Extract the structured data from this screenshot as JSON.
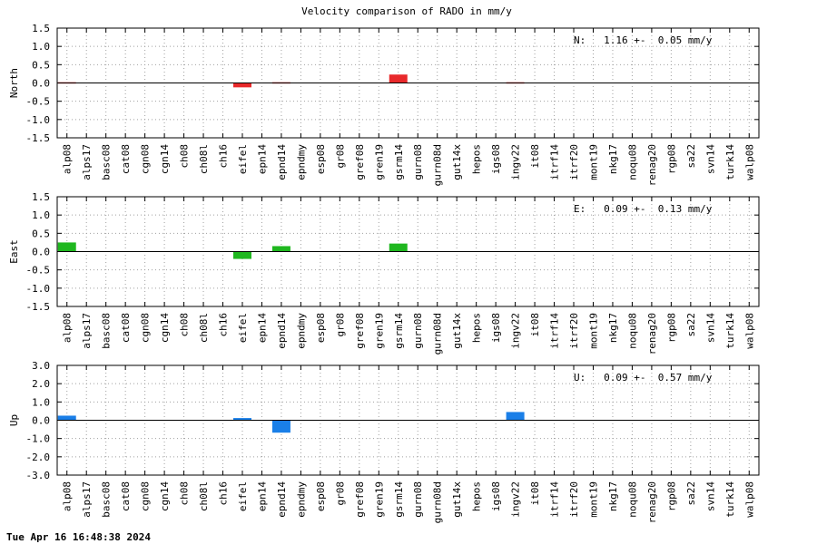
{
  "title": "Velocity comparison of RADO in mm/y",
  "timestamp": "Tue Apr 16 16:48:38 2024",
  "chart_data": {
    "type": "bar",
    "title": "Velocity comparison of RADO in mm/y",
    "categories": [
      "alp08",
      "alps17",
      "basc08",
      "cat08",
      "cgn08",
      "cgn14",
      "ch08",
      "ch08l",
      "ch16",
      "eifel",
      "epn14",
      "epnd14",
      "epndmy",
      "esp08",
      "gr08",
      "gref08",
      "gren19",
      "gsrm14",
      "gurn08",
      "gurn08d",
      "gut14x",
      "hepos",
      "igs08",
      "ingv22",
      "it08",
      "itrf14",
      "itrf20",
      "mont19",
      "nkg17",
      "noqu08",
      "renag20",
      "rgp08",
      "sa22",
      "svn14",
      "turk14",
      "walp08"
    ],
    "panels": [
      {
        "ylabel": "North",
        "color": "#e8292b",
        "ylim": [
          -1.5,
          1.5
        ],
        "yticks": [
          "1.5",
          "1.0",
          "0.5",
          "0.0",
          "-0.5",
          "-1.0",
          "-1.5"
        ],
        "stat": "N:   1.16 +-  0.05 mm/y",
        "values": [
          0.02,
          0,
          0,
          0,
          0,
          0,
          0,
          0,
          0,
          -0.12,
          0,
          0.02,
          0,
          0,
          0,
          0,
          0,
          0.23,
          0,
          0,
          0,
          0,
          0,
          0.02,
          0,
          0,
          0,
          0,
          0,
          0,
          0,
          0,
          0,
          0,
          0,
          0
        ]
      },
      {
        "ylabel": "East",
        "color": "#1fb71f",
        "ylim": [
          -1.5,
          1.5
        ],
        "yticks": [
          "1.5",
          "1.0",
          "0.5",
          "0.0",
          "-0.5",
          "-1.0",
          "-1.5"
        ],
        "stat": "E:   0.09 +-  0.13 mm/y",
        "values": [
          0.25,
          0,
          0,
          0,
          0,
          0,
          0,
          0,
          0,
          -0.2,
          0,
          0.15,
          0,
          0,
          0,
          0,
          0,
          0.22,
          0,
          0,
          0,
          0,
          0,
          0,
          0,
          0,
          0,
          0,
          0,
          0,
          0,
          0,
          0,
          0,
          0,
          0
        ]
      },
      {
        "ylabel": "Up",
        "color": "#1a7fe8",
        "ylim": [
          -3.0,
          3.0
        ],
        "yticks": [
          "3.0",
          "2.0",
          "1.0",
          "0.0",
          "-1.0",
          "-2.0",
          "-3.0"
        ],
        "stat": "U:   0.09 +-  0.57 mm/y",
        "values": [
          0.25,
          0,
          0,
          0,
          0,
          0,
          0,
          0,
          0,
          0.12,
          0,
          -0.68,
          0,
          0,
          0,
          0,
          0,
          0,
          0,
          0,
          0,
          0,
          0,
          0.45,
          0,
          0,
          0,
          0,
          0,
          0,
          0,
          0,
          0,
          0,
          0,
          0
        ]
      }
    ]
  }
}
